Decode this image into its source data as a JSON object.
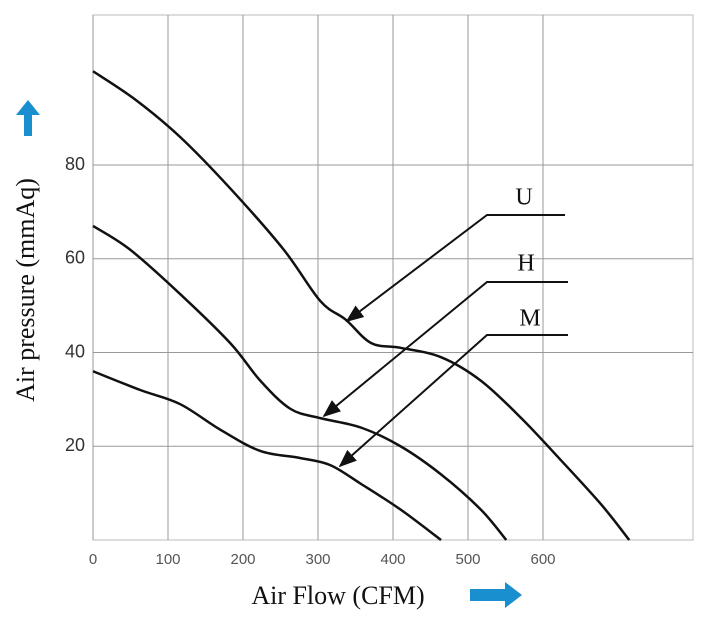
{
  "chart_data": {
    "type": "line",
    "x_label": "Air Flow (CFM)",
    "y_label": "Air pressure (mmAq)",
    "xlim": [
      0,
      800
    ],
    "xticks": [
      0,
      100,
      200,
      300,
      400,
      500,
      600
    ],
    "ylim": [
      0,
      112
    ],
    "yticks": [
      20,
      40,
      60,
      80
    ],
    "grid": true,
    "series": [
      {
        "name": "U",
        "color": "#111111",
        "x": [
          0,
          56,
          116,
          183,
          254,
          303,
          337,
          371,
          410,
          464,
          517,
          571,
          624,
          678,
          715
        ],
        "values": [
          100,
          94,
          86,
          75,
          62,
          51,
          47,
          42,
          41,
          39,
          34,
          26,
          17,
          7.5,
          0
        ]
      },
      {
        "name": "H",
        "color": "#111111",
        "x": [
          0,
          49,
          116,
          183,
          223,
          263,
          303,
          357,
          410,
          464,
          517,
          551
        ],
        "values": [
          67,
          62,
          52.5,
          42,
          34,
          28,
          26,
          24,
          20,
          14,
          6.5,
          0
        ]
      },
      {
        "name": "M",
        "color": "#111111",
        "x": [
          0,
          63,
          116,
          170,
          223,
          276,
          316,
          357,
          410,
          464
        ],
        "values": [
          36,
          32,
          29,
          23.5,
          19,
          17.5,
          16,
          12,
          6.5,
          0
        ]
      }
    ]
  }
}
